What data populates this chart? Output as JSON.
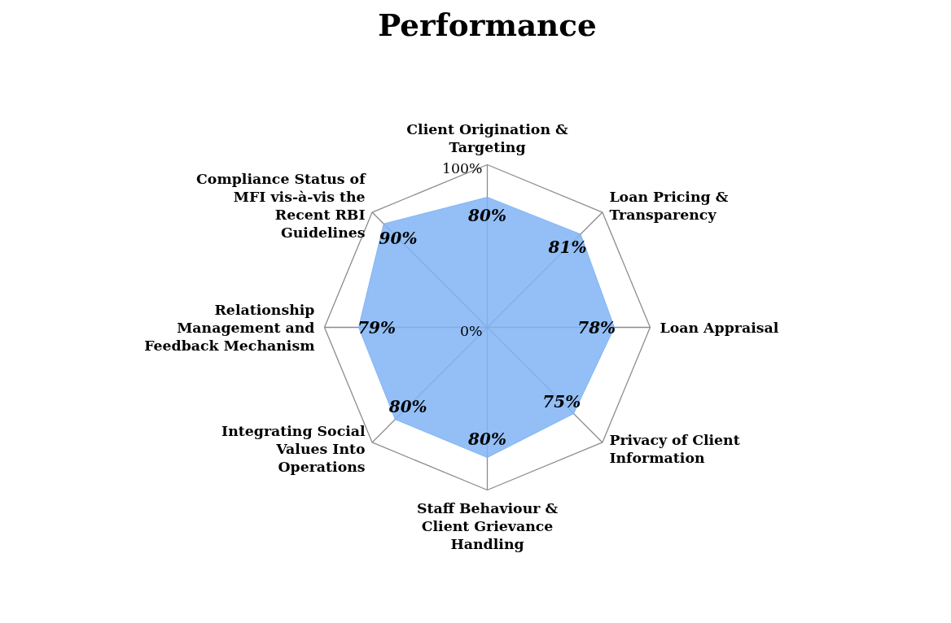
{
  "chart_data": {
    "type": "radar",
    "title": "Performance",
    "categories": [
      "Client Origination & Targeting",
      "Loan Pricing & Transparency",
      "Loan Appraisal",
      "Privacy of Client Information",
      "Staff Behaviour & Client Grievance Handling",
      "Integrating Social Values Into Operations",
      "Relationship Management and Feedback Mechanism",
      "Compliance Status of MFI vis-à-vis the Recent RBI Guidelines"
    ],
    "series": [
      {
        "color": "#80b4f5",
        "values": [
          80,
          81,
          78,
          75,
          80,
          80,
          79,
          90
        ],
        "value_labels": [
          "80%",
          "81%",
          "78%",
          "75%",
          "80%",
          "80%",
          "79%",
          "90%"
        ]
      }
    ],
    "ylim": [
      0,
      100
    ],
    "yticks": [
      {
        "value": 0,
        "label": "0%"
      },
      {
        "value": 100,
        "label": "100%"
      }
    ],
    "grid": true,
    "data_labels": true
  }
}
